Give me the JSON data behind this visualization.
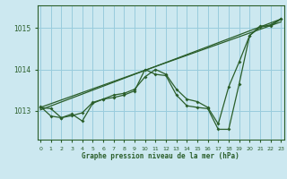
{
  "title": "Graphe pression niveau de la mer (hPa)",
  "background_color": "#cce8f0",
  "grid_color": "#99ccdd",
  "line_color": "#2a5e2a",
  "x_ticks": [
    0,
    1,
    2,
    3,
    4,
    5,
    6,
    7,
    8,
    9,
    10,
    11,
    12,
    13,
    14,
    15,
    16,
    17,
    18,
    19,
    20,
    21,
    22,
    23
  ],
  "y_ticks": [
    1013,
    1014,
    1015
  ],
  "ylim": [
    1012.3,
    1015.55
  ],
  "xlim": [
    -0.3,
    23.3
  ],
  "series1_x": [
    0,
    1,
    2,
    3,
    4,
    5,
    6,
    7,
    8,
    9,
    10,
    11,
    12,
    13,
    14,
    15,
    16,
    17,
    18,
    19,
    20,
    21,
    22,
    23
  ],
  "series1_y": [
    1013.1,
    1012.87,
    1012.83,
    1012.92,
    1012.75,
    1013.18,
    1013.28,
    1013.32,
    1013.38,
    1013.48,
    1014.0,
    1013.88,
    1013.85,
    1013.38,
    1013.12,
    1013.08,
    1013.05,
    1012.55,
    1012.55,
    1013.65,
    1014.82,
    1015.05,
    1015.05,
    1015.22
  ],
  "series2_x": [
    0,
    1,
    2,
    3,
    4,
    5,
    6,
    7,
    8,
    9,
    10,
    11,
    12,
    13,
    14,
    15,
    16,
    17,
    18,
    19,
    20,
    21,
    22,
    23
  ],
  "series2_y": [
    1013.08,
    1013.05,
    1012.83,
    1012.88,
    1012.95,
    1013.2,
    1013.28,
    1013.38,
    1013.42,
    1013.52,
    1013.82,
    1014.0,
    1013.88,
    1013.52,
    1013.28,
    1013.22,
    1013.08,
    1012.68,
    1013.58,
    1014.18,
    1014.82,
    1015.02,
    1015.08,
    1015.22
  ],
  "trend1_x": [
    0,
    23
  ],
  "trend1_y": [
    1013.02,
    1015.22
  ],
  "trend2_x": [
    0,
    23
  ],
  "trend2_y": [
    1013.08,
    1015.15
  ]
}
